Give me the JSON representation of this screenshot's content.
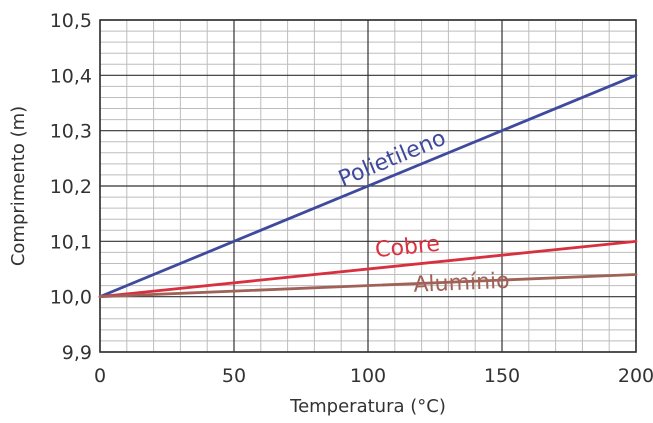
{
  "chart_data": {
    "type": "line",
    "title": "",
    "xlabel": "Temperatura (°C)",
    "ylabel": "Comprimento (m)",
    "xlim": [
      0,
      200
    ],
    "ylim": [
      9.9,
      10.5
    ],
    "x_ticks": [
      0,
      50,
      100,
      150,
      200
    ],
    "x_tick_labels": [
      "0",
      "50",
      "100",
      "150",
      "200"
    ],
    "y_ticks": [
      9.9,
      10.0,
      10.1,
      10.2,
      10.3,
      10.4,
      10.5
    ],
    "y_tick_labels": [
      "9,9",
      "10,0",
      "10,1",
      "10,2",
      "10,3",
      "10,4",
      "10,5"
    ],
    "grid": true,
    "grid_minor": true,
    "series": [
      {
        "name": "Polietileno",
        "color": "#3f4a9e",
        "x": [
          0,
          200
        ],
        "y": [
          10.0,
          10.4
        ]
      },
      {
        "name": "Cobre",
        "color": "#d8303e",
        "x": [
          0,
          200
        ],
        "y": [
          10.0,
          10.1
        ]
      },
      {
        "name": "Alumínio",
        "color": "#a06257",
        "x": [
          0,
          200
        ],
        "y": [
          10.0,
          10.04
        ]
      }
    ]
  }
}
